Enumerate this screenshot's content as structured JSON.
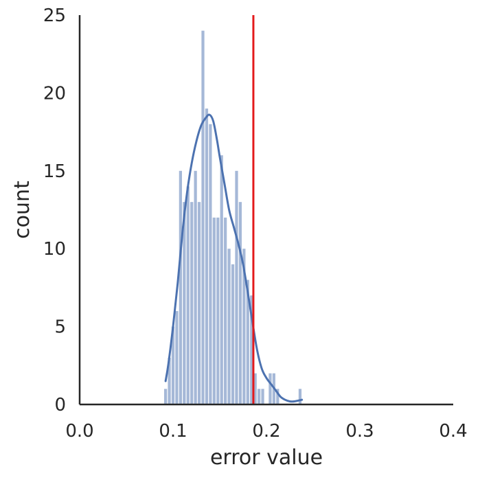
{
  "chart_data": {
    "type": "bar",
    "subtype": "histogram-with-kde",
    "title": "",
    "xlabel": "error value",
    "ylabel": "count",
    "xlim": [
      0.0,
      0.4
    ],
    "ylim": [
      0,
      25
    ],
    "x_ticks": [
      "0.0",
      "0.1",
      "0.2",
      "0.3",
      "0.4"
    ],
    "y_ticks": [
      "0",
      "5",
      "10",
      "15",
      "20",
      "25"
    ],
    "grid": false,
    "legend": "none",
    "bin_width": 0.004,
    "bins": [
      {
        "x": 0.092,
        "count": 1
      },
      {
        "x": 0.096,
        "count": 3
      },
      {
        "x": 0.1,
        "count": 5
      },
      {
        "x": 0.104,
        "count": 6
      },
      {
        "x": 0.108,
        "count": 15
      },
      {
        "x": 0.112,
        "count": 13
      },
      {
        "x": 0.116,
        "count": 14
      },
      {
        "x": 0.12,
        "count": 13
      },
      {
        "x": 0.124,
        "count": 15
      },
      {
        "x": 0.128,
        "count": 13
      },
      {
        "x": 0.132,
        "count": 24
      },
      {
        "x": 0.136,
        "count": 19
      },
      {
        "x": 0.14,
        "count": 18
      },
      {
        "x": 0.144,
        "count": 12
      },
      {
        "x": 0.148,
        "count": 12
      },
      {
        "x": 0.152,
        "count": 16
      },
      {
        "x": 0.156,
        "count": 12
      },
      {
        "x": 0.16,
        "count": 10
      },
      {
        "x": 0.164,
        "count": 9
      },
      {
        "x": 0.168,
        "count": 15
      },
      {
        "x": 0.172,
        "count": 13
      },
      {
        "x": 0.176,
        "count": 10
      },
      {
        "x": 0.18,
        "count": 8
      },
      {
        "x": 0.184,
        "count": 7
      },
      {
        "x": 0.188,
        "count": 2
      },
      {
        "x": 0.192,
        "count": 1
      },
      {
        "x": 0.196,
        "count": 1
      },
      {
        "x": 0.2,
        "count": 0
      },
      {
        "x": 0.204,
        "count": 2
      },
      {
        "x": 0.208,
        "count": 2
      },
      {
        "x": 0.212,
        "count": 1
      },
      {
        "x": 0.216,
        "count": 0
      },
      {
        "x": 0.22,
        "count": 0
      },
      {
        "x": 0.224,
        "count": 0
      },
      {
        "x": 0.228,
        "count": 0
      },
      {
        "x": 0.232,
        "count": 0
      },
      {
        "x": 0.236,
        "count": 1
      }
    ],
    "kde_curve": [
      [
        0.092,
        1.5
      ],
      [
        0.095,
        2.6
      ],
      [
        0.1,
        5.0
      ],
      [
        0.105,
        7.8
      ],
      [
        0.11,
        11.0
      ],
      [
        0.115,
        13.6
      ],
      [
        0.12,
        15.5
      ],
      [
        0.125,
        16.9
      ],
      [
        0.13,
        17.9
      ],
      [
        0.135,
        18.4
      ],
      [
        0.139,
        18.6
      ],
      [
        0.143,
        18.2
      ],
      [
        0.147,
        17.0
      ],
      [
        0.15,
        15.9
      ],
      [
        0.155,
        14.2
      ],
      [
        0.16,
        12.5
      ],
      [
        0.165,
        11.4
      ],
      [
        0.17,
        10.3
      ],
      [
        0.175,
        9.0
      ],
      [
        0.18,
        7.2
      ],
      [
        0.185,
        5.3
      ],
      [
        0.19,
        3.5
      ],
      [
        0.195,
        2.3
      ],
      [
        0.2,
        1.7
      ],
      [
        0.205,
        1.3
      ],
      [
        0.21,
        0.9
      ],
      [
        0.215,
        0.5
      ],
      [
        0.22,
        0.3
      ],
      [
        0.225,
        0.2
      ],
      [
        0.23,
        0.2
      ],
      [
        0.238,
        0.3
      ]
    ],
    "threshold_line": {
      "x": 0.186
    },
    "colors": {
      "bars": "#4c72b0",
      "kde": "#4c72b0",
      "threshold": "#e31a1c",
      "axes": "#262626"
    }
  }
}
